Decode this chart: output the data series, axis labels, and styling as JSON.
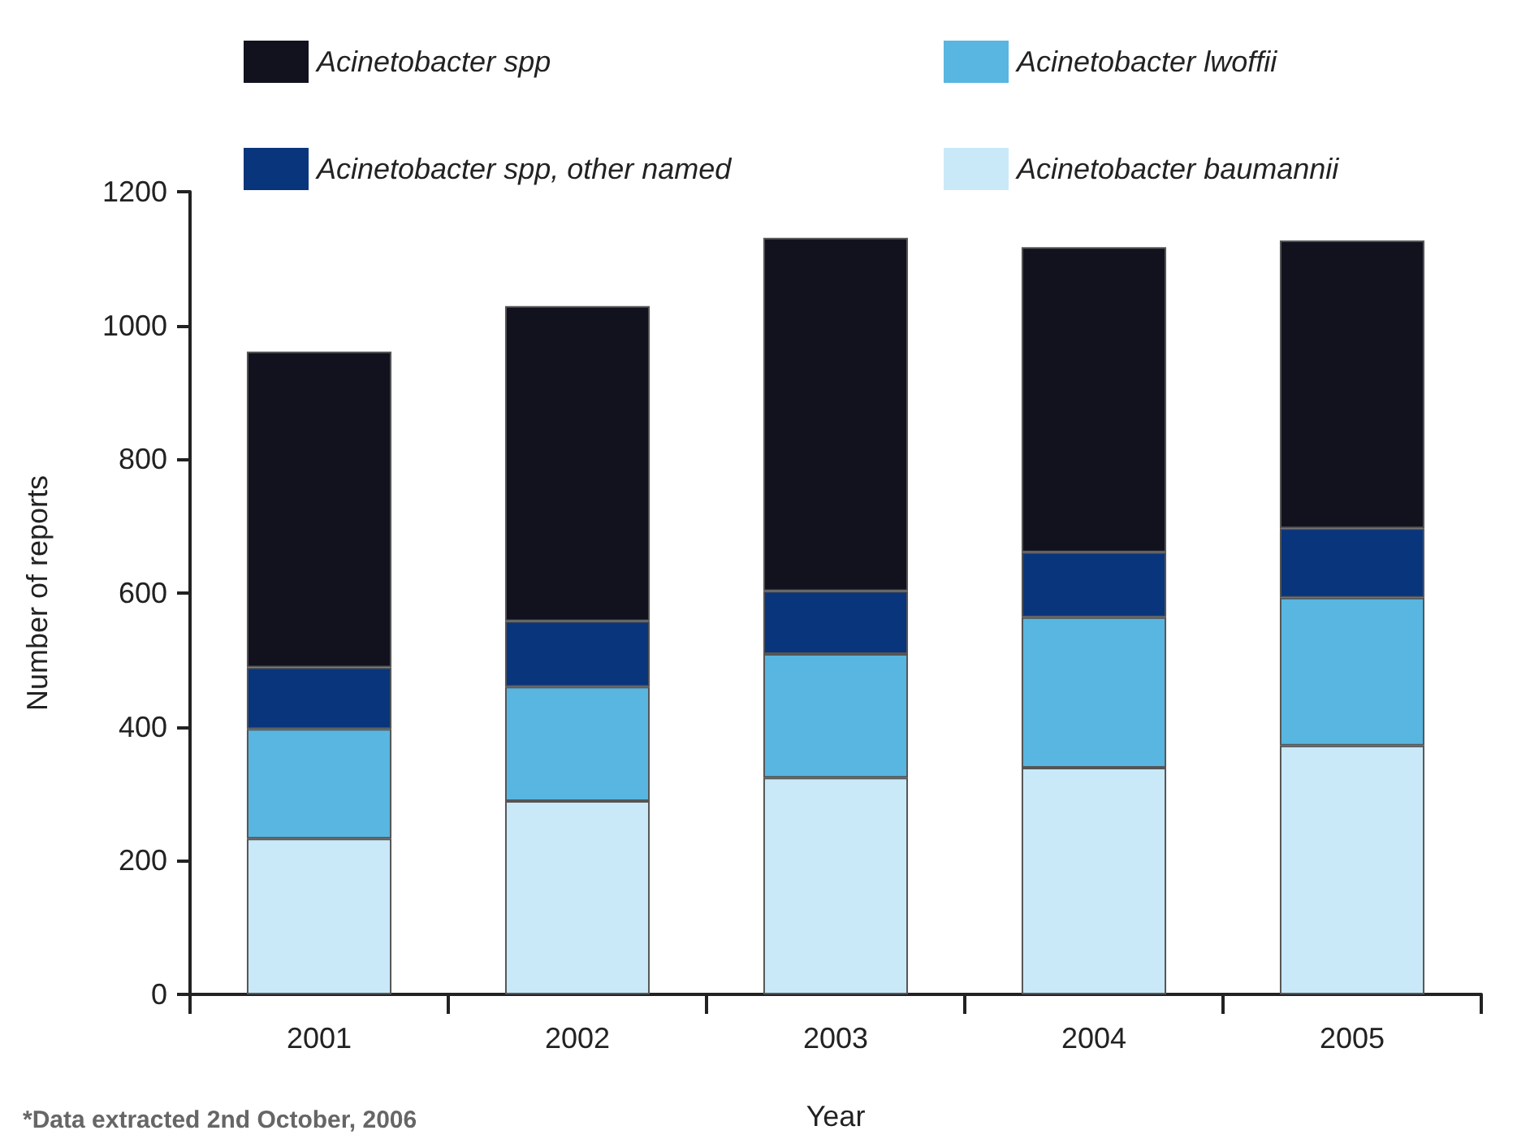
{
  "chart_data": {
    "type": "bar",
    "stacked": true,
    "xlabel": "Year",
    "ylabel": "Number of reports",
    "categories": [
      "2001",
      "2002",
      "2003",
      "2004",
      "2005"
    ],
    "series": [
      {
        "name": "Acinetobacter baumannii",
        "color": "#c9e9f9",
        "values": [
          233,
          289,
          324,
          339,
          372
        ]
      },
      {
        "name": "Acinetobacter lwoffii",
        "color": "#58b6e0",
        "values": [
          164,
          171,
          185,
          225,
          221
        ]
      },
      {
        "name": "Acinetobacter spp, other named",
        "color": "#08357c",
        "values": [
          92,
          98,
          94,
          97,
          104
        ]
      },
      {
        "name": "Acinetobacter spp",
        "color": "#11121e",
        "values": [
          472,
          471,
          528,
          456,
          430
        ]
      }
    ],
    "ylim": [
      0,
      1200
    ],
    "yticks": [
      0,
      200,
      400,
      600,
      800,
      1000,
      1200
    ],
    "grid": false,
    "legend": "top",
    "annotations": [
      "*Data extracted 2nd October, 2006"
    ]
  }
}
